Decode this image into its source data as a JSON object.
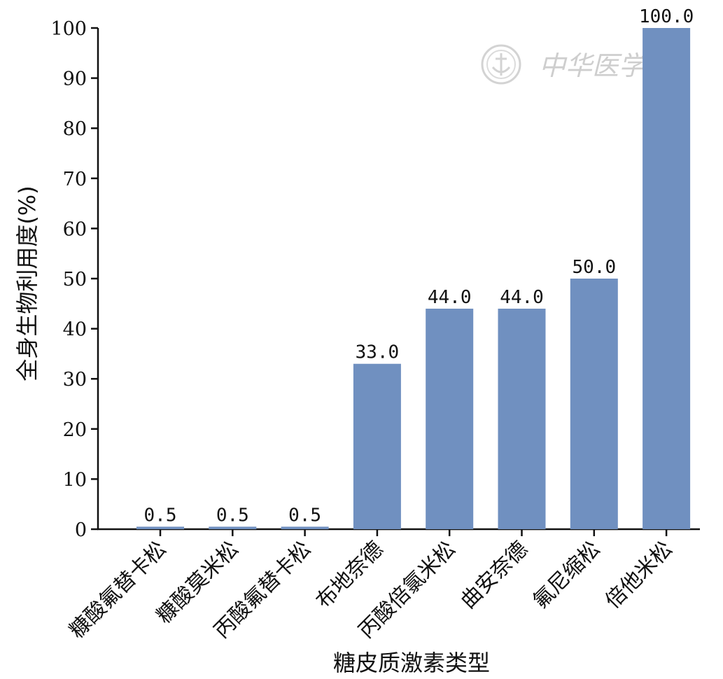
{
  "chart_data": {
    "type": "bar",
    "categories": [
      "糠酸氟替卡松",
      "糠酸莫米松",
      "丙酸氟替卡松",
      "布地奈德",
      "丙酸倍氯米松",
      "曲安奈德",
      "氟尼缩松",
      "倍他米松"
    ],
    "values": [
      0.5,
      0.5,
      0.5,
      33.0,
      44.0,
      44.0,
      50.0,
      100.0
    ],
    "data_labels": [
      "0.5",
      "0.5",
      "0.5",
      "33.0",
      "44.0",
      "44.0",
      "50.0",
      "100.0"
    ],
    "xlabel": "糖皮质激素类型",
    "ylabel": "全身生物利用度(%)",
    "ylim": [
      0,
      100
    ],
    "yticks": [
      0,
      10,
      20,
      30,
      40,
      50,
      60,
      70,
      80,
      90,
      100
    ],
    "grid": false,
    "bar_color": "#7090c0"
  },
  "watermark": {
    "text": "中华医学会"
  }
}
